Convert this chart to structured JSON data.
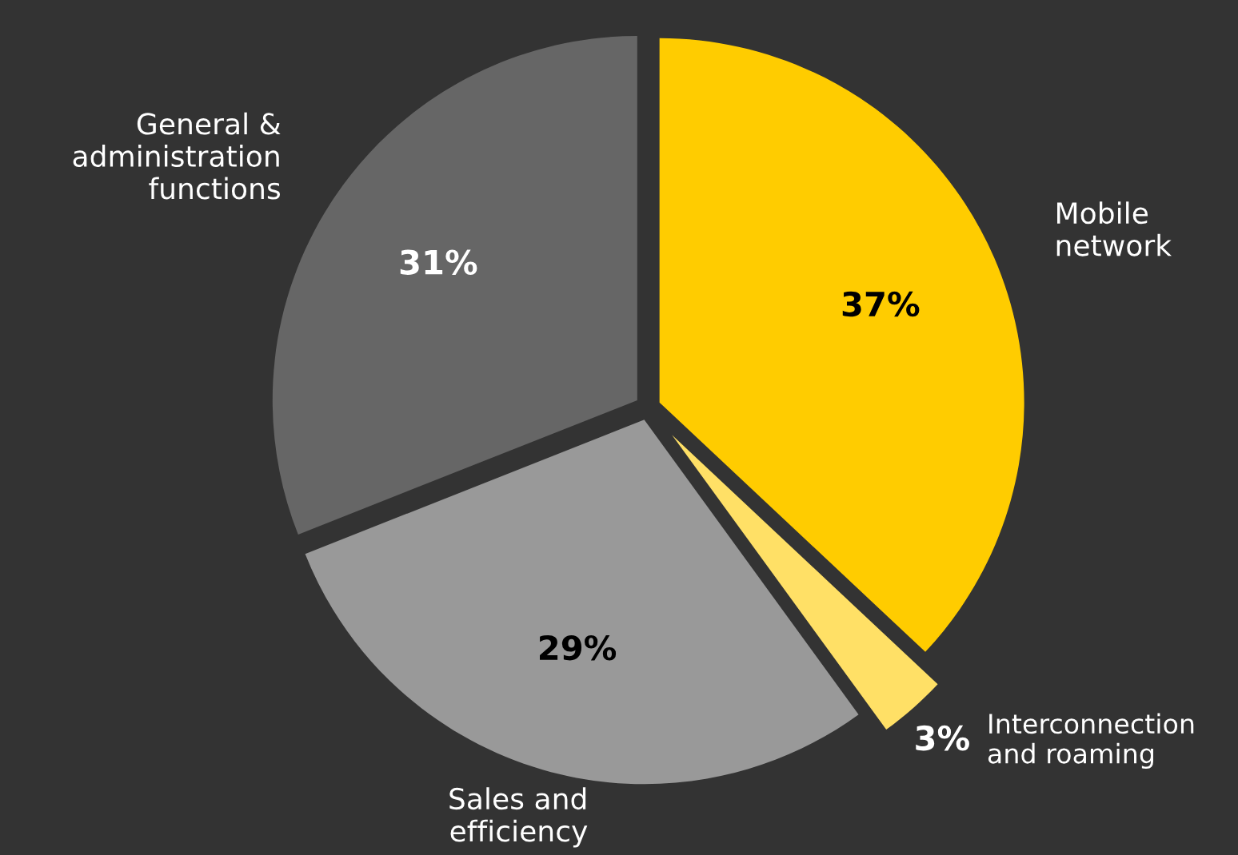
{
  "chart_data": {
    "type": "pie",
    "categories": [
      "Mobile\nnetwork",
      "Interconnection\nand roaming",
      "Sales and\nefficiency",
      "General &\nadministration\nfunctions"
    ],
    "values": [
      37,
      3,
      29,
      31
    ],
    "colors": [
      "#ffcc00",
      "#ffe066",
      "#999999",
      "#666666"
    ],
    "value_labels": [
      "37%",
      "3%",
      "29%",
      "31%"
    ]
  }
}
